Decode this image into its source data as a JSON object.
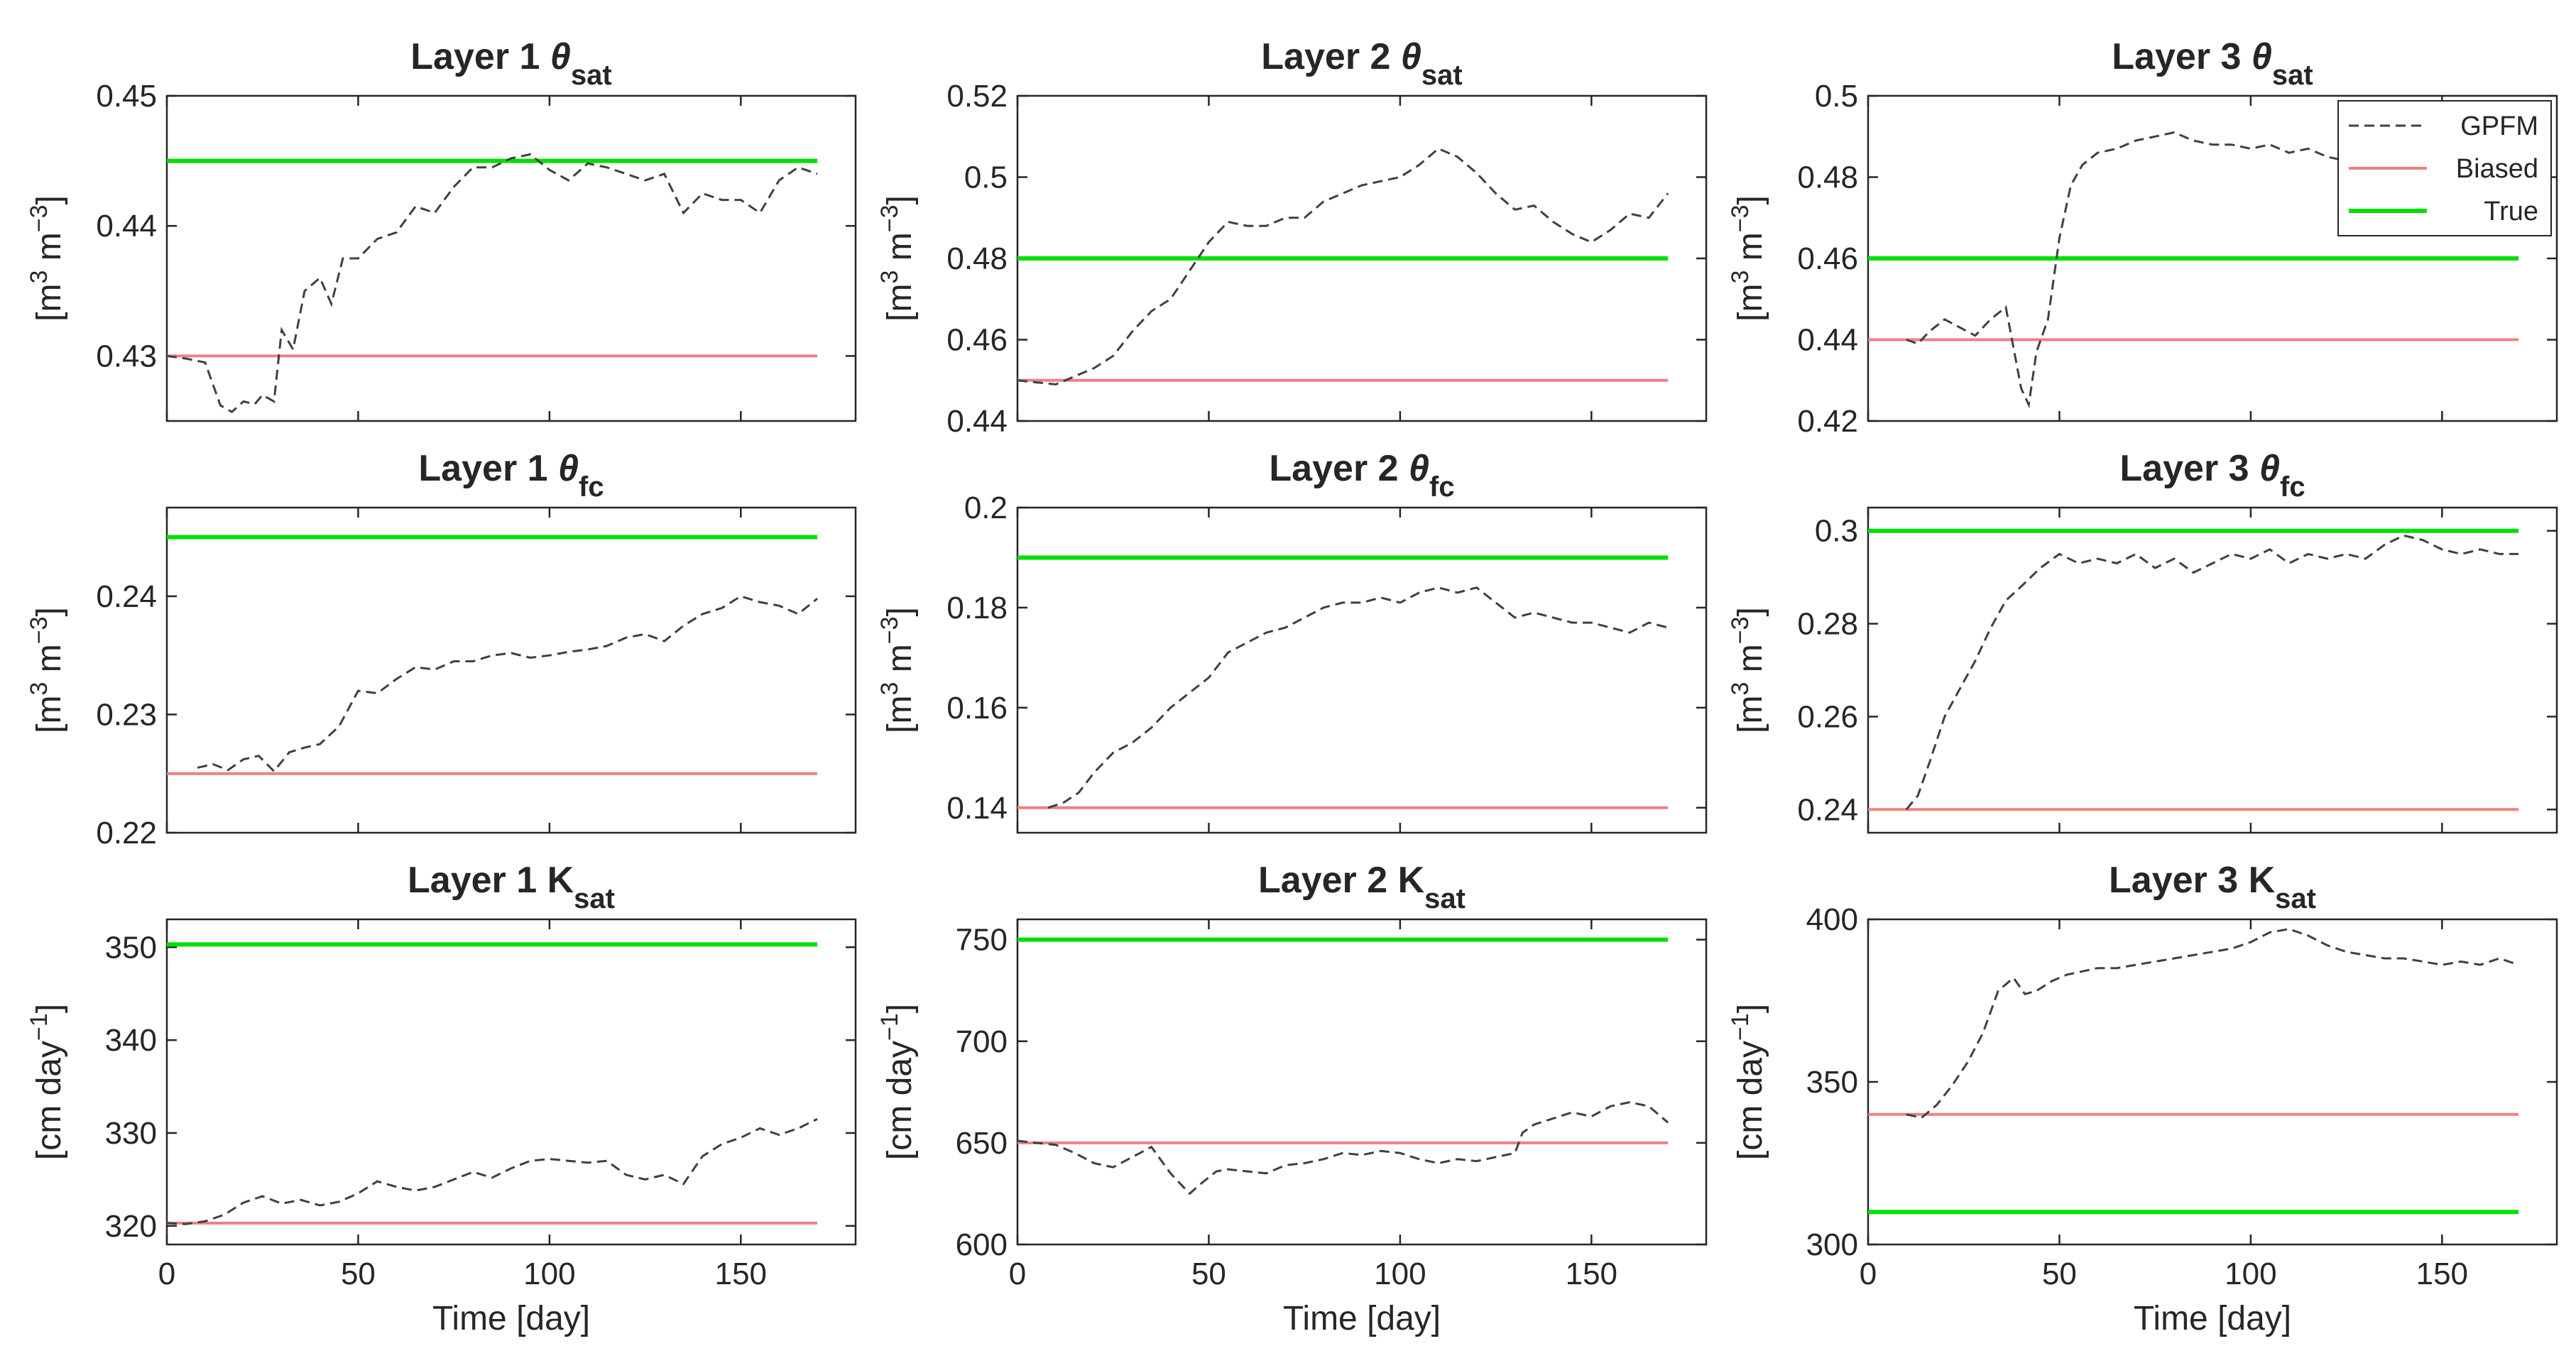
{
  "chart_data": [
    {
      "type": "line",
      "title": "Layer 1 θsat",
      "title_main": "Layer 1 ",
      "title_symbol": "θ",
      "title_sub": "sat",
      "ylabel": "[m3 m-3]",
      "ylabel_parts": {
        "open": "[m",
        "sup1": "3",
        "mid": " m",
        "sup2": "−3",
        "close": "]"
      },
      "xlabel": "",
      "xlim": [
        0,
        180
      ],
      "ylim": [
        0.425,
        0.45
      ],
      "yticks": [
        0.43,
        0.44,
        0.45
      ],
      "ytick_labels": [
        "0.43",
        "0.44",
        "0.45"
      ],
      "xticks": [
        0,
        50,
        100,
        150
      ],
      "xtick_labels": [
        "",
        "",
        "",
        ""
      ],
      "biased": 0.43,
      "true": 0.445,
      "gpfm": {
        "x": [
          0,
          5,
          10,
          14,
          17,
          20,
          23,
          25,
          28,
          30,
          33,
          36,
          40,
          43,
          46,
          50,
          55,
          60,
          65,
          70,
          75,
          80,
          85,
          90,
          95,
          100,
          105,
          110,
          115,
          120,
          125,
          130,
          135,
          140,
          145,
          150,
          155,
          160,
          165,
          170
        ],
        "y": [
          0.43,
          0.4298,
          0.4295,
          0.4262,
          0.4257,
          0.4265,
          0.4263,
          0.427,
          0.4265,
          0.432,
          0.4305,
          0.435,
          0.436,
          0.434,
          0.4375,
          0.4375,
          0.439,
          0.4395,
          0.4415,
          0.441,
          0.443,
          0.4445,
          0.4445,
          0.4452,
          0.4455,
          0.4443,
          0.4435,
          0.4448,
          0.4445,
          0.444,
          0.4435,
          0.444,
          0.441,
          0.4425,
          0.442,
          0.442,
          0.441,
          0.4435,
          0.4445,
          0.444
        ]
      }
    },
    {
      "type": "line",
      "title": "Layer 2 θsat",
      "title_main": "Layer 2 ",
      "title_symbol": "θ",
      "title_sub": "sat",
      "ylabel": "[m3 m-3]",
      "ylabel_parts": {
        "open": "[m",
        "sup1": "3",
        "mid": " m",
        "sup2": "−3",
        "close": "]"
      },
      "xlabel": "",
      "xlim": [
        0,
        180
      ],
      "ylim": [
        0.44,
        0.52
      ],
      "yticks": [
        0.44,
        0.46,
        0.48,
        0.5,
        0.52
      ],
      "ytick_labels": [
        "0.44",
        "0.46",
        "0.48",
        "0.5",
        "0.52"
      ],
      "xticks": [
        0,
        50,
        100,
        150
      ],
      "xtick_labels": [
        "",
        "",
        "",
        ""
      ],
      "biased": 0.45,
      "true": 0.48,
      "gpfm": {
        "x": [
          0,
          5,
          10,
          15,
          20,
          25,
          30,
          35,
          40,
          45,
          50,
          55,
          60,
          65,
          70,
          75,
          80,
          85,
          90,
          95,
          100,
          105,
          110,
          115,
          120,
          125,
          130,
          135,
          140,
          145,
          150,
          155,
          160,
          165,
          170
        ],
        "y": [
          0.45,
          0.4495,
          0.449,
          0.451,
          0.453,
          0.456,
          0.462,
          0.467,
          0.47,
          0.477,
          0.484,
          0.489,
          0.488,
          0.488,
          0.49,
          0.49,
          0.494,
          0.496,
          0.498,
          0.499,
          0.5,
          0.503,
          0.507,
          0.505,
          0.501,
          0.496,
          0.492,
          0.493,
          0.489,
          0.486,
          0.484,
          0.487,
          0.491,
          0.49,
          0.496
        ]
      }
    },
    {
      "type": "line",
      "title": "Layer 3 θsat",
      "title_main": "Layer 3 ",
      "title_symbol": "θ",
      "title_sub": "sat",
      "ylabel": "[m3 m-3]",
      "ylabel_parts": {
        "open": "[m",
        "sup1": "3",
        "mid": " m",
        "sup2": "−3",
        "close": "]"
      },
      "xlabel": "",
      "xlim": [
        0,
        180
      ],
      "ylim": [
        0.42,
        0.5
      ],
      "yticks": [
        0.42,
        0.44,
        0.46,
        0.48,
        0.5
      ],
      "ytick_labels": [
        "0.42",
        "0.44",
        "0.46",
        "0.48",
        "0.5"
      ],
      "xticks": [
        0,
        50,
        100,
        150
      ],
      "xtick_labels": [
        "",
        "",
        "",
        ""
      ],
      "biased": 0.44,
      "true": 0.46,
      "gpfm": {
        "x": [
          10,
          13,
          16,
          20,
          24,
          28,
          32,
          36,
          38,
          40,
          42,
          44,
          47,
          50,
          53,
          56,
          60,
          65,
          70,
          75,
          80,
          85,
          90,
          95,
          100,
          105,
          110,
          115,
          120,
          125
        ],
        "y": [
          0.44,
          0.439,
          0.442,
          0.445,
          0.443,
          0.441,
          0.445,
          0.448,
          0.438,
          0.428,
          0.424,
          0.437,
          0.445,
          0.465,
          0.478,
          0.483,
          0.486,
          0.487,
          0.489,
          0.49,
          0.491,
          0.489,
          0.488,
          0.488,
          0.487,
          0.488,
          0.486,
          0.487,
          0.485,
          0.484
        ]
      }
    },
    {
      "type": "line",
      "title": "Layer 1 θfc",
      "title_main": "Layer 1 ",
      "title_symbol": "θ",
      "title_sub": "fc",
      "ylabel": "[m3 m-3]",
      "ylabel_parts": {
        "open": "[m",
        "sup1": "3",
        "mid": " m",
        "sup2": "−3",
        "close": "]"
      },
      "xlabel": "",
      "xlim": [
        0,
        180
      ],
      "ylim": [
        0.22,
        0.2475
      ],
      "yticks": [
        0.22,
        0.23,
        0.24
      ],
      "ytick_labels": [
        "0.22",
        "0.23",
        "0.24"
      ],
      "xticks": [
        0,
        50,
        100,
        150
      ],
      "xtick_labels": [
        "",
        "",
        "",
        ""
      ],
      "biased": 0.225,
      "true": 0.245,
      "gpfm": {
        "x": [
          8,
          12,
          16,
          20,
          24,
          28,
          32,
          36,
          40,
          45,
          50,
          55,
          60,
          65,
          70,
          75,
          80,
          85,
          90,
          95,
          100,
          105,
          110,
          115,
          120,
          125,
          130,
          135,
          140,
          145,
          150,
          155,
          160,
          165,
          170
        ],
        "y": [
          0.2255,
          0.2258,
          0.2253,
          0.2262,
          0.2265,
          0.2252,
          0.2268,
          0.2272,
          0.2275,
          0.229,
          0.232,
          0.2318,
          0.233,
          0.234,
          0.2338,
          0.2345,
          0.2345,
          0.235,
          0.2352,
          0.2348,
          0.235,
          0.2353,
          0.2355,
          0.2358,
          0.2365,
          0.2368,
          0.2362,
          0.2375,
          0.2385,
          0.239,
          0.24,
          0.2395,
          0.2392,
          0.2385,
          0.2398
        ]
      }
    },
    {
      "type": "line",
      "title": "Layer 2 θfc",
      "title_main": "Layer 2 ",
      "title_symbol": "θ",
      "title_sub": "fc",
      "ylabel": "[m3 m-3]",
      "ylabel_parts": {
        "open": "[m",
        "sup1": "3",
        "mid": " m",
        "sup2": "−3",
        "close": "]"
      },
      "xlabel": "",
      "xlim": [
        0,
        180
      ],
      "ylim": [
        0.135,
        0.2
      ],
      "yticks": [
        0.14,
        0.16,
        0.18,
        0.2
      ],
      "ytick_labels": [
        "0.14",
        "0.16",
        "0.18",
        "0.2"
      ],
      "xticks": [
        0,
        50,
        100,
        150
      ],
      "xtick_labels": [
        "",
        "",
        "",
        ""
      ],
      "biased": 0.14,
      "true": 0.19,
      "gpfm": {
        "x": [
          8,
          12,
          16,
          20,
          25,
          30,
          35,
          40,
          45,
          50,
          55,
          60,
          65,
          70,
          75,
          80,
          85,
          90,
          95,
          100,
          105,
          110,
          115,
          120,
          125,
          130,
          135,
          140,
          145,
          150,
          155,
          160,
          165,
          170
        ],
        "y": [
          0.14,
          0.141,
          0.143,
          0.147,
          0.151,
          0.153,
          0.156,
          0.16,
          0.163,
          0.166,
          0.171,
          0.173,
          0.175,
          0.176,
          0.178,
          0.18,
          0.181,
          0.181,
          0.182,
          0.181,
          0.183,
          0.184,
          0.183,
          0.184,
          0.181,
          0.178,
          0.179,
          0.178,
          0.177,
          0.177,
          0.176,
          0.175,
          0.177,
          0.176
        ]
      }
    },
    {
      "type": "line",
      "title": "Layer 3 θfc",
      "title_main": "Layer 3 ",
      "title_symbol": "θ",
      "title_sub": "fc",
      "ylabel": "[m3 m-3]",
      "ylabel_parts": {
        "open": "[m",
        "sup1": "3",
        "mid": " m",
        "sup2": "−3",
        "close": "]"
      },
      "xlabel": "",
      "xlim": [
        0,
        180
      ],
      "ylim": [
        0.235,
        0.305
      ],
      "yticks": [
        0.24,
        0.26,
        0.28,
        0.3
      ],
      "ytick_labels": [
        "0.24",
        "0.26",
        "0.28",
        "0.3"
      ],
      "xticks": [
        0,
        50,
        100,
        150
      ],
      "xtick_labels": [
        "",
        "",
        "",
        ""
      ],
      "biased": 0.24,
      "true": 0.3,
      "gpfm": {
        "x": [
          10,
          13,
          16,
          20,
          24,
          28,
          32,
          36,
          40,
          45,
          50,
          55,
          60,
          65,
          70,
          75,
          80,
          85,
          90,
          95,
          100,
          105,
          110,
          115,
          120,
          125,
          130,
          135,
          140,
          145,
          150,
          155,
          160,
          165,
          170
        ],
        "y": [
          0.24,
          0.243,
          0.25,
          0.26,
          0.266,
          0.272,
          0.279,
          0.285,
          0.288,
          0.292,
          0.295,
          0.293,
          0.294,
          0.293,
          0.295,
          0.292,
          0.294,
          0.291,
          0.293,
          0.295,
          0.294,
          0.296,
          0.293,
          0.295,
          0.294,
          0.295,
          0.294,
          0.297,
          0.299,
          0.298,
          0.296,
          0.295,
          0.296,
          0.295,
          0.295
        ]
      }
    },
    {
      "type": "line",
      "title": "Layer 1 Ksat",
      "title_main": "Layer 1 K",
      "title_symbol": "",
      "title_sub": "sat",
      "ylabel": "[cm day-1]",
      "ylabel_parts": {
        "open": "[cm day",
        "sup1": "−1",
        "mid": "",
        "sup2": "",
        "close": "]"
      },
      "xlabel": "Time [day]",
      "xlim": [
        0,
        180
      ],
      "ylim": [
        318,
        353
      ],
      "yticks": [
        320,
        330,
        340,
        350
      ],
      "ytick_labels": [
        "320",
        "330",
        "340",
        "350"
      ],
      "xticks": [
        0,
        50,
        100,
        150
      ],
      "xtick_labels": [
        "0",
        "50",
        "100",
        "150"
      ],
      "biased": 320.3,
      "true": 350.3,
      "gpfm": {
        "x": [
          0,
          5,
          10,
          15,
          20,
          25,
          30,
          35,
          40,
          45,
          50,
          55,
          60,
          65,
          70,
          75,
          80,
          85,
          90,
          95,
          100,
          105,
          110,
          115,
          120,
          125,
          130,
          135,
          140,
          145,
          150,
          155,
          160,
          165,
          170
        ],
        "y": [
          320.3,
          320.2,
          320.5,
          321.2,
          322.5,
          323.2,
          322.4,
          322.8,
          322.2,
          322.6,
          323.5,
          324.8,
          324.2,
          323.8,
          324.2,
          325.0,
          325.8,
          325.2,
          326.2,
          327.0,
          327.2,
          327.0,
          326.8,
          327.0,
          325.5,
          325.0,
          325.5,
          324.5,
          327.5,
          328.8,
          329.5,
          330.5,
          329.8,
          330.5,
          331.5
        ]
      }
    },
    {
      "type": "line",
      "title": "Layer 2 Ksat",
      "title_main": "Layer 2 K",
      "title_symbol": "",
      "title_sub": "sat",
      "ylabel": "[cm day-1]",
      "ylabel_parts": {
        "open": "[cm day",
        "sup1": "−1",
        "mid": "",
        "sup2": "",
        "close": "]"
      },
      "xlabel": "Time [day]",
      "xlim": [
        0,
        180
      ],
      "ylim": [
        600,
        760
      ],
      "yticks": [
        600,
        650,
        700,
        750
      ],
      "ytick_labels": [
        "600",
        "650",
        "700",
        "750"
      ],
      "xticks": [
        0,
        50,
        100,
        150
      ],
      "xtick_labels": [
        "0",
        "50",
        "100",
        "150"
      ],
      "biased": 650,
      "true": 750,
      "gpfm": {
        "x": [
          0,
          5,
          10,
          15,
          20,
          25,
          30,
          35,
          40,
          45,
          48,
          52,
          55,
          60,
          65,
          70,
          75,
          80,
          85,
          90,
          95,
          100,
          105,
          110,
          115,
          120,
          125,
          130,
          132,
          135,
          140,
          145,
          150,
          155,
          160,
          165,
          170
        ],
        "y": [
          651,
          650,
          649,
          645,
          640,
          638,
          643,
          648,
          635,
          625,
          630,
          636,
          637,
          636,
          635,
          639,
          640,
          642,
          645,
          644,
          646,
          645,
          642,
          640,
          642,
          641,
          643,
          645,
          655,
          659,
          662,
          665,
          663,
          668,
          670,
          668,
          660
        ]
      }
    },
    {
      "type": "line",
      "title": "Layer 3 Ksat",
      "title_main": "Layer 3 K",
      "title_symbol": "",
      "title_sub": "sat",
      "ylabel": "[cm day-1]",
      "ylabel_parts": {
        "open": "[cm day",
        "sup1": "−1",
        "mid": "",
        "sup2": "",
        "close": "]"
      },
      "xlabel": "Time [day]",
      "xlim": [
        0,
        180
      ],
      "ylim": [
        300,
        400
      ],
      "yticks": [
        300,
        350,
        400
      ],
      "ytick_labels": [
        "300",
        "350",
        "400"
      ],
      "xticks": [
        0,
        50,
        100,
        150
      ],
      "xtick_labels": [
        "0",
        "50",
        "100",
        "150"
      ],
      "biased": 340,
      "true": 310,
      "gpfm": {
        "x": [
          10,
          14,
          18,
          22,
          26,
          30,
          34,
          38,
          41,
          44,
          48,
          52,
          56,
          60,
          65,
          70,
          75,
          80,
          85,
          90,
          95,
          100,
          105,
          110,
          115,
          120,
          125,
          130,
          135,
          140,
          145,
          150,
          155,
          160,
          165,
          170
        ],
        "y": [
          340,
          339,
          343,
          349,
          356,
          365,
          378,
          382,
          377,
          378,
          381,
          383,
          384,
          385,
          385,
          386,
          387,
          388,
          389,
          390,
          391,
          393,
          396,
          397,
          395,
          392,
          390,
          389,
          388,
          388,
          387,
          386,
          387,
          386,
          388,
          386
        ]
      }
    }
  ],
  "legend": {
    "items": [
      {
        "label": "GPFM",
        "color": "#404040",
        "style": "dashed"
      },
      {
        "label": "Biased",
        "color": "#f08080",
        "style": "solid"
      },
      {
        "label": "True",
        "color": "#00e000",
        "style": "solid"
      }
    ],
    "location": "top-right of Layer 3 θsat panel"
  },
  "colors": {
    "gpfm": "#404040",
    "biased": "#f08080",
    "true": "#00e000",
    "axis": "#262626"
  }
}
